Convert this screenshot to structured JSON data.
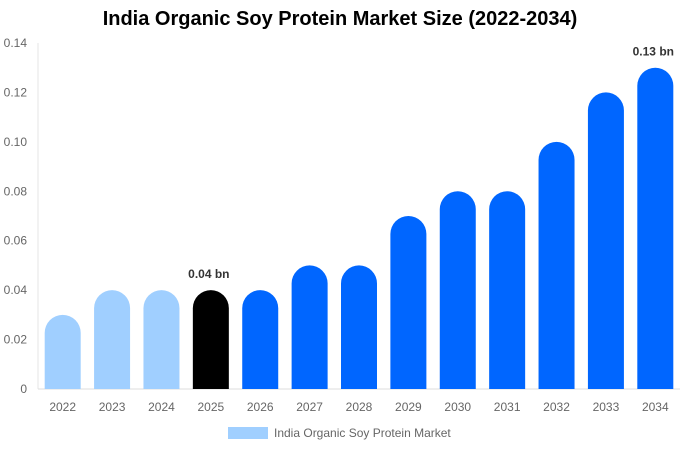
{
  "chart_data": {
    "type": "bar",
    "title": "India Organic Soy Protein Market Size (2022-2034)",
    "categories": [
      "2022",
      "2023",
      "2024",
      "2025",
      "2026",
      "2027",
      "2028",
      "2029",
      "2030",
      "2031",
      "2032",
      "2033",
      "2034"
    ],
    "values": [
      0.03,
      0.04,
      0.04,
      0.04,
      0.04,
      0.05,
      0.05,
      0.07,
      0.08,
      0.08,
      0.1,
      0.12,
      0.13
    ],
    "colors": [
      "#a0cfff",
      "#a0cfff",
      "#a0cfff",
      "#000000",
      "#0066ff",
      "#0066ff",
      "#0066ff",
      "#0066ff",
      "#0066ff",
      "#0066ff",
      "#0066ff",
      "#0066ff",
      "#0066ff"
    ],
    "ylim": [
      0,
      0.14
    ],
    "yticks": [
      "0",
      "0.02",
      "0.04",
      "0.06",
      "0.08",
      "0.10",
      "0.12",
      "0.14"
    ],
    "data_labels": {
      "2025": "0.04 bn",
      "2034": "0.13 bn"
    },
    "legend": {
      "label": "India Organic Soy Protein Market",
      "color": "#a0cfff",
      "placement": "bottom"
    },
    "grid": false
  }
}
